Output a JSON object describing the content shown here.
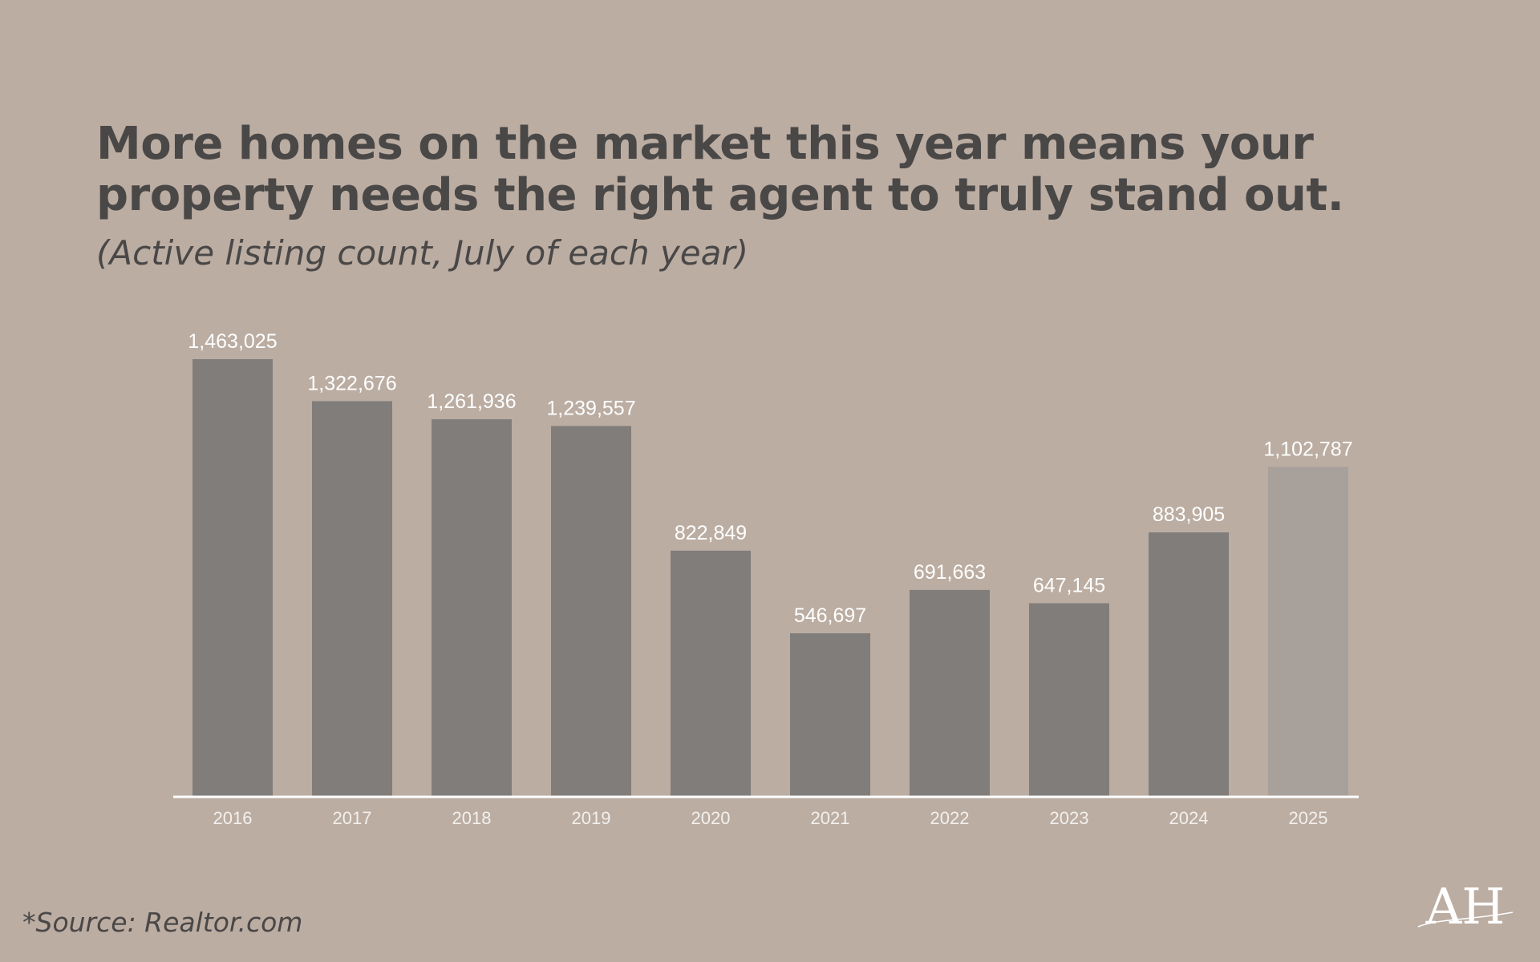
{
  "colors": {
    "background": "#bbada2",
    "title_text": "#4a4747",
    "bar": "#817d7b",
    "bar_highlight": "#a8a09b",
    "value_label": "#ffffff",
    "tick_label": "#f3f0ed",
    "axis_line": "#ffffff",
    "logo": "#ffffff"
  },
  "header": {
    "title": "More homes on the market this year means your property needs the right agent to truly stand out.",
    "subtitle": "(Active listing count, July of each year)"
  },
  "chart_data": {
    "type": "bar",
    "title": "",
    "xlabel": "",
    "ylabel": "",
    "categories": [
      "2016",
      "2017",
      "2018",
      "2019",
      "2020",
      "2021",
      "2022",
      "2023",
      "2024",
      "2025"
    ],
    "values": [
      1463025,
      1322676,
      1261936,
      1239557,
      822849,
      546697,
      691663,
      647145,
      883905,
      1102787
    ],
    "value_labels": [
      "1,463,025",
      "1,322,676",
      "1,261,936",
      "1,239,557",
      "822,849",
      "546,697",
      "691,663",
      "647,145",
      "883,905",
      "1,102,787"
    ],
    "highlight_index": 9,
    "ylim": [
      0,
      1463025
    ],
    "grid": false,
    "legend": "none"
  },
  "footer": {
    "source": "*Source: Realtor.com"
  },
  "logo": {
    "text": "AH",
    "icon": "monogram-logo-icon"
  }
}
